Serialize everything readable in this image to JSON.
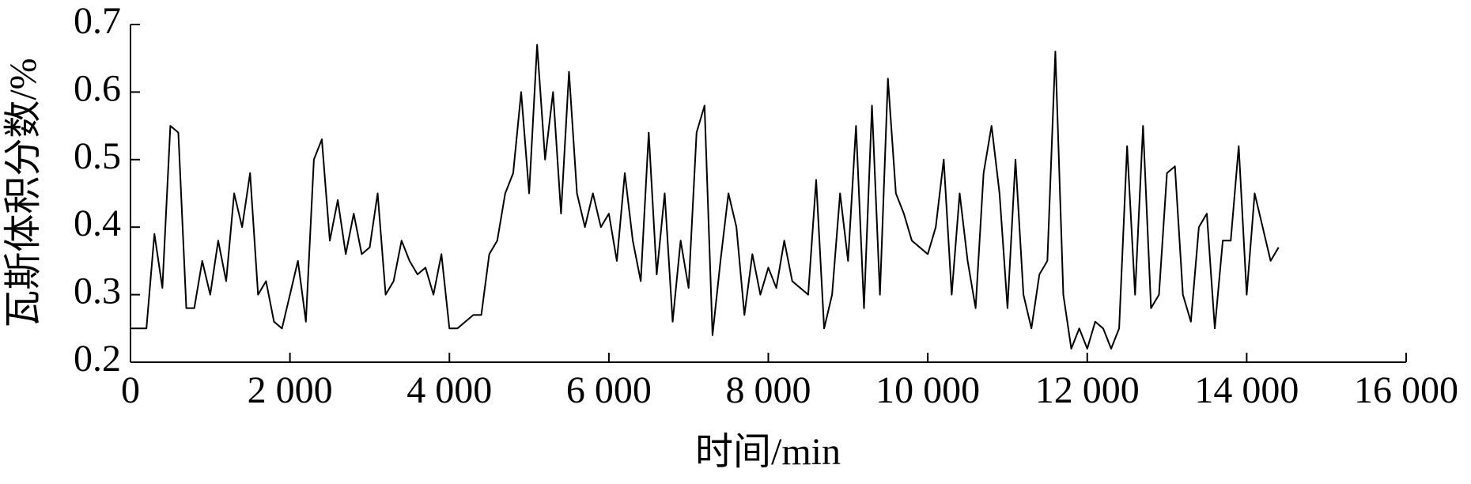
{
  "chart_data": {
    "type": "line",
    "xlabel": "时间/min",
    "ylabel": "瓦斯体积分数/%",
    "color": "#000000",
    "xlim": [
      0,
      16000
    ],
    "ylim": [
      0.2,
      0.7
    ],
    "xticks": [
      0,
      {
        "value": 2000,
        "label": "2 000"
      },
      {
        "value": 4000,
        "label": "4 000"
      },
      {
        "value": 6000,
        "label": "6 000"
      },
      {
        "value": 8000,
        "label": "8 000"
      },
      {
        "value": 10000,
        "label": "10 000"
      },
      {
        "value": 12000,
        "label": "12 000"
      },
      {
        "value": 14000,
        "label": "14 000"
      },
      {
        "value": 16000,
        "label": "16 000"
      }
    ],
    "yticks": [
      0.2,
      0.3,
      0.4,
      0.5,
      0.6,
      0.7
    ],
    "x": [
      0,
      100,
      200,
      300,
      400,
      500,
      600,
      700,
      800,
      900,
      1000,
      1100,
      1200,
      1300,
      1400,
      1500,
      1600,
      1700,
      1800,
      1900,
      2000,
      2100,
      2200,
      2300,
      2400,
      2500,
      2600,
      2700,
      2800,
      2900,
      3000,
      3100,
      3200,
      3300,
      3400,
      3500,
      3600,
      3700,
      3800,
      3900,
      4000,
      4100,
      4200,
      4300,
      4400,
      4500,
      4600,
      4700,
      4800,
      4900,
      5000,
      5100,
      5200,
      5300,
      5400,
      5500,
      5600,
      5700,
      5800,
      5900,
      6000,
      6100,
      6200,
      6300,
      6400,
      6500,
      6600,
      6700,
      6800,
      6900,
      7000,
      7100,
      7200,
      7300,
      7400,
      7500,
      7600,
      7700,
      7800,
      7900,
      8000,
      8100,
      8200,
      8300,
      8400,
      8500,
      8600,
      8700,
      8800,
      8900,
      9000,
      9100,
      9200,
      9300,
      9400,
      9500,
      9600,
      9700,
      9800,
      9900,
      10000,
      10100,
      10200,
      10300,
      10400,
      10500,
      10600,
      10700,
      10800,
      10900,
      11000,
      11100,
      11200,
      11300,
      11400,
      11500,
      11600,
      11700,
      11800,
      11900,
      12000,
      12100,
      12200,
      12300,
      12400,
      12500,
      12600,
      12700,
      12800,
      12900,
      13000,
      13100,
      13200,
      13300,
      13400,
      13500,
      13600,
      13700,
      13800,
      13900,
      14000,
      14100,
      14200,
      14300,
      14400
    ],
    "values": [
      0.25,
      0.25,
      0.25,
      0.39,
      0.31,
      0.55,
      0.54,
      0.28,
      0.28,
      0.35,
      0.3,
      0.38,
      0.32,
      0.45,
      0.4,
      0.48,
      0.3,
      0.32,
      0.26,
      0.25,
      0.3,
      0.35,
      0.26,
      0.5,
      0.53,
      0.38,
      0.44,
      0.36,
      0.42,
      0.36,
      0.37,
      0.45,
      0.3,
      0.32,
      0.38,
      0.35,
      0.33,
      0.34,
      0.3,
      0.36,
      0.25,
      0.25,
      0.26,
      0.27,
      0.27,
      0.36,
      0.38,
      0.45,
      0.48,
      0.6,
      0.45,
      0.67,
      0.5,
      0.6,
      0.42,
      0.63,
      0.45,
      0.4,
      0.45,
      0.4,
      0.42,
      0.35,
      0.48,
      0.38,
      0.32,
      0.54,
      0.33,
      0.45,
      0.26,
      0.38,
      0.31,
      0.54,
      0.58,
      0.24,
      0.35,
      0.45,
      0.4,
      0.27,
      0.36,
      0.3,
      0.34,
      0.31,
      0.38,
      0.32,
      0.31,
      0.3,
      0.47,
      0.25,
      0.3,
      0.45,
      0.35,
      0.55,
      0.28,
      0.58,
      0.3,
      0.62,
      0.45,
      0.42,
      0.38,
      0.37,
      0.36,
      0.4,
      0.5,
      0.3,
      0.45,
      0.35,
      0.28,
      0.48,
      0.55,
      0.45,
      0.28,
      0.5,
      0.3,
      0.25,
      0.33,
      0.35,
      0.66,
      0.3,
      0.22,
      0.25,
      0.22,
      0.26,
      0.25,
      0.22,
      0.25,
      0.52,
      0.3,
      0.55,
      0.28,
      0.3,
      0.48,
      0.49,
      0.3,
      0.26,
      0.4,
      0.42,
      0.25,
      0.38,
      0.38,
      0.52,
      0.3,
      0.45,
      0.4,
      0.35,
      0.37
    ]
  }
}
